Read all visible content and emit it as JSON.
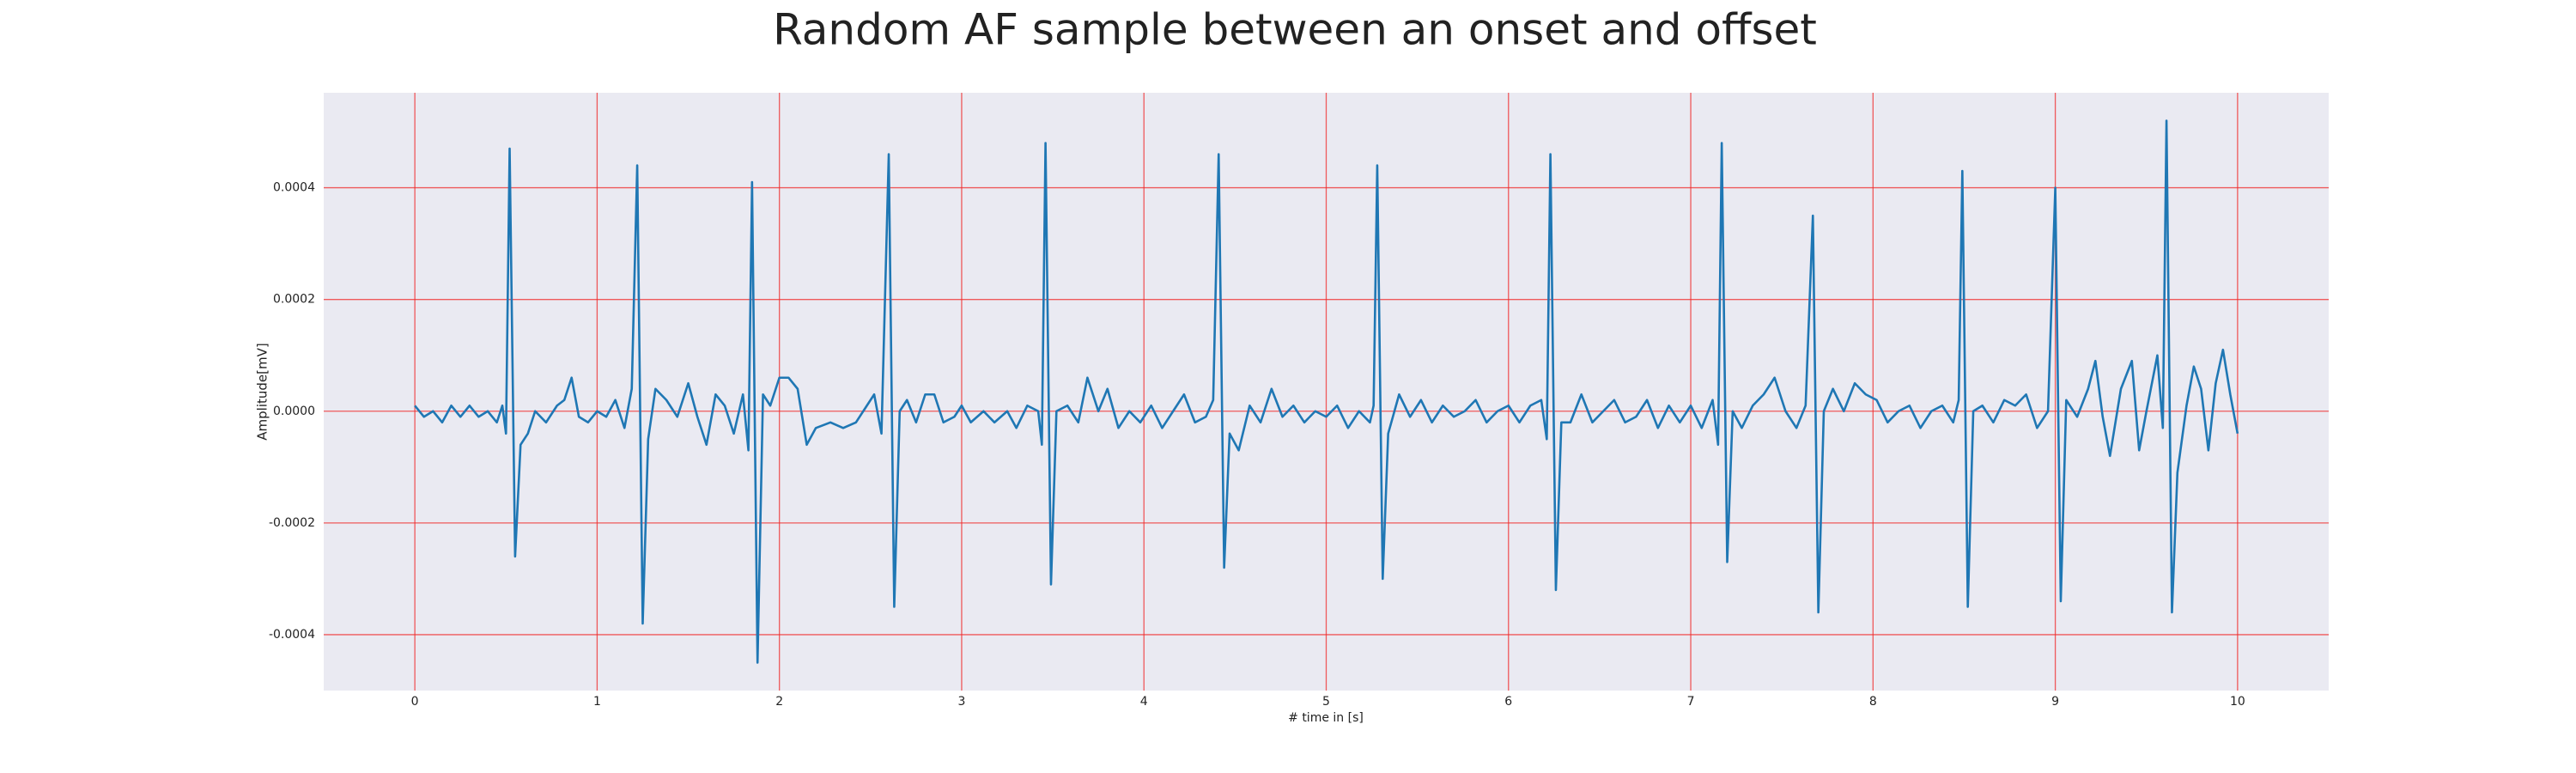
{
  "chart_data": {
    "type": "line",
    "title": "Random AF sample between an onset and offset",
    "xlabel": "# time in [s]",
    "ylabel": "Amplitude[mV]",
    "color": "#1f77b4",
    "grid": true,
    "xlim": [
      -0.5,
      10.5
    ],
    "ylim": [
      -0.0005,
      0.00057
    ],
    "xticks": [
      0,
      1,
      2,
      3,
      4,
      5,
      6,
      7,
      8,
      9,
      10
    ],
    "yticks": [
      {
        "value": -0.0004,
        "label": "-0.0004"
      },
      {
        "value": -0.0002,
        "label": "-0.0002"
      },
      {
        "value": 0,
        "label": "0.0000"
      },
      {
        "value": 0.0002,
        "label": "0.0002"
      },
      {
        "value": 0.0004,
        "label": "0.0004"
      }
    ],
    "x": [
      0.0,
      0.05,
      0.1,
      0.15,
      0.2,
      0.25,
      0.3,
      0.35,
      0.4,
      0.45,
      0.48,
      0.5,
      0.52,
      0.55,
      0.58,
      0.62,
      0.66,
      0.72,
      0.78,
      0.82,
      0.86,
      0.9,
      0.95,
      1.0,
      1.05,
      1.1,
      1.15,
      1.19,
      1.22,
      1.25,
      1.28,
      1.32,
      1.38,
      1.44,
      1.5,
      1.55,
      1.6,
      1.65,
      1.7,
      1.75,
      1.8,
      1.83,
      1.85,
      1.88,
      1.91,
      1.95,
      2.0,
      2.05,
      2.1,
      2.15,
      2.2,
      2.28,
      2.35,
      2.42,
      2.48,
      2.52,
      2.56,
      2.6,
      2.63,
      2.66,
      2.7,
      2.75,
      2.8,
      2.85,
      2.9,
      2.96,
      3.0,
      3.05,
      3.12,
      3.18,
      3.25,
      3.3,
      3.36,
      3.42,
      3.44,
      3.46,
      3.49,
      3.52,
      3.58,
      3.64,
      3.69,
      3.75,
      3.8,
      3.86,
      3.92,
      3.98,
      4.04,
      4.1,
      4.16,
      4.22,
      4.28,
      4.34,
      4.38,
      4.41,
      4.44,
      4.47,
      4.52,
      4.58,
      4.64,
      4.7,
      4.76,
      4.82,
      4.88,
      4.94,
      5.0,
      5.06,
      5.12,
      5.18,
      5.24,
      5.26,
      5.28,
      5.31,
      5.34,
      5.4,
      5.46,
      5.52,
      5.58,
      5.64,
      5.7,
      5.76,
      5.82,
      5.88,
      5.94,
      6.0,
      6.06,
      6.12,
      6.18,
      6.21,
      6.23,
      6.26,
      6.29,
      6.34,
      6.4,
      6.46,
      6.52,
      6.58,
      6.64,
      6.7,
      6.76,
      6.82,
      6.88,
      6.94,
      7.0,
      7.06,
      7.12,
      7.15,
      7.17,
      7.2,
      7.23,
      7.28,
      7.34,
      7.4,
      7.46,
      7.52,
      7.58,
      7.63,
      7.67,
      7.7,
      7.73,
      7.78,
      7.84,
      7.9,
      7.96,
      8.02,
      8.08,
      8.14,
      8.2,
      8.26,
      8.32,
      8.38,
      8.44,
      8.47,
      8.49,
      8.52,
      8.55,
      8.6,
      8.66,
      8.72,
      8.78,
      8.84,
      8.9,
      8.96,
      9.0,
      9.03,
      9.06,
      9.12,
      9.18,
      9.22,
      9.26,
      9.3,
      9.36,
      9.42,
      9.46,
      9.5,
      9.56,
      9.59,
      9.61,
      9.64,
      9.67,
      9.72,
      9.76,
      9.8,
      9.84,
      9.88,
      9.92,
      9.96,
      10.0
    ],
    "values": [
      1e-05,
      -1e-05,
      0,
      -2e-05,
      1e-05,
      -1e-05,
      1e-05,
      -1e-05,
      0,
      -2e-05,
      1e-05,
      -4e-05,
      0.00047,
      -0.00026,
      -6e-05,
      -4e-05,
      0,
      -2e-05,
      1e-05,
      2e-05,
      6e-05,
      -1e-05,
      -2e-05,
      0,
      -1e-05,
      2e-05,
      -3e-05,
      4e-05,
      0.00044,
      -0.00038,
      -5e-05,
      4e-05,
      2e-05,
      -1e-05,
      5e-05,
      -1e-05,
      -6e-05,
      3e-05,
      1e-05,
      -4e-05,
      3e-05,
      -7e-05,
      0.00041,
      -0.00045,
      3e-05,
      1e-05,
      6e-05,
      6e-05,
      4e-05,
      -6e-05,
      -3e-05,
      -2e-05,
      -3e-05,
      -2e-05,
      1e-05,
      3e-05,
      -4e-05,
      0.00046,
      -0.00035,
      0,
      2e-05,
      -2e-05,
      3e-05,
      3e-05,
      -2e-05,
      -1e-05,
      1e-05,
      -2e-05,
      0,
      -2e-05,
      0,
      -3e-05,
      1e-05,
      0,
      -6e-05,
      0.00048,
      -0.00031,
      0,
      1e-05,
      -2e-05,
      6e-05,
      0,
      4e-05,
      -3e-05,
      0,
      -2e-05,
      1e-05,
      -3e-05,
      0,
      3e-05,
      -2e-05,
      -1e-05,
      2e-05,
      0.00046,
      -0.00028,
      -4e-05,
      -7e-05,
      1e-05,
      -2e-05,
      4e-05,
      -1e-05,
      1e-05,
      -2e-05,
      0,
      -1e-05,
      1e-05,
      -3e-05,
      0,
      -2e-05,
      1e-05,
      0.00044,
      -0.0003,
      -4e-05,
      3e-05,
      -1e-05,
      2e-05,
      -2e-05,
      1e-05,
      -1e-05,
      0,
      2e-05,
      -2e-05,
      0,
      1e-05,
      -2e-05,
      1e-05,
      2e-05,
      -5e-05,
      0.00046,
      -0.00032,
      -2e-05,
      -2e-05,
      3e-05,
      -2e-05,
      0,
      2e-05,
      -2e-05,
      -1e-05,
      2e-05,
      -3e-05,
      1e-05,
      -2e-05,
      1e-05,
      -3e-05,
      2e-05,
      -6e-05,
      0.00048,
      -0.00027,
      0,
      -3e-05,
      1e-05,
      3e-05,
      6e-05,
      0,
      -3e-05,
      1e-05,
      0.00035,
      -0.00036,
      0,
      4e-05,
      0,
      5e-05,
      3e-05,
      2e-05,
      -2e-05,
      0,
      1e-05,
      -3e-05,
      0,
      1e-05,
      -2e-05,
      2e-05,
      0.00043,
      -0.00035,
      0,
      1e-05,
      -2e-05,
      2e-05,
      1e-05,
      3e-05,
      -3e-05,
      0,
      0.0004,
      -0.00034,
      2e-05,
      -1e-05,
      4e-05,
      9e-05,
      -1e-05,
      -8e-05,
      4e-05,
      9e-05,
      -7e-05,
      0,
      0.0001,
      -3e-05,
      0.00052,
      -0.00036,
      -0.00011,
      1e-05,
      8e-05,
      4e-05,
      -7e-05,
      5e-05,
      0.00011,
      3e-05,
      -4e-05
    ]
  }
}
